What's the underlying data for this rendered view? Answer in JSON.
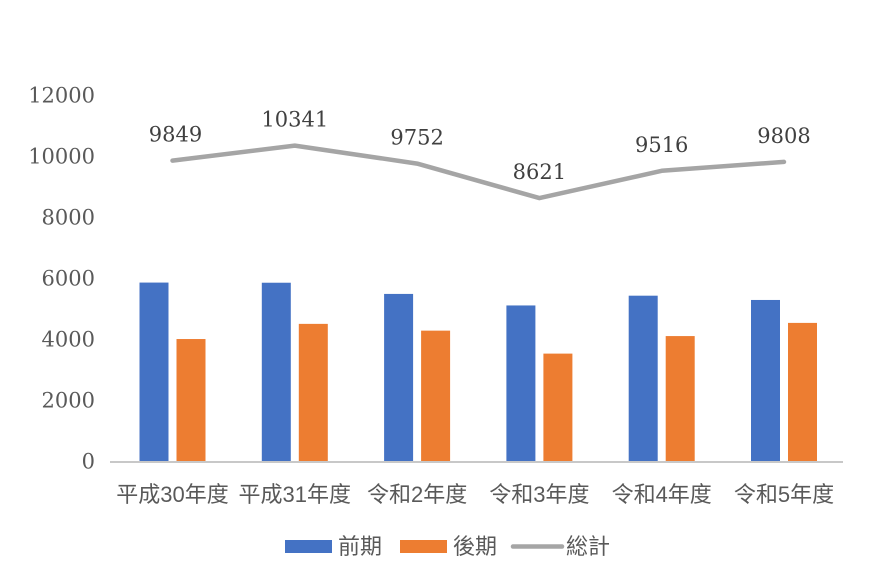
{
  "chart_data": {
    "type": "bar",
    "subtype": "combo-bar-line",
    "title": "",
    "categories": [
      "平成30年度",
      "平成31年度",
      "令和2年度",
      "令和3年度",
      "令和4年度",
      "令和5年度"
    ],
    "series": [
      {
        "name": "前期",
        "kind": "bar",
        "color": "#4472C4",
        "values": [
          5850,
          5845,
          5478,
          5100,
          5420,
          5280
        ]
      },
      {
        "name": "後期",
        "kind": "bar",
        "color": "#ED7D31",
        "values": [
          3999,
          4496,
          4274,
          3521,
          4096,
          4528
        ]
      },
      {
        "name": "総計",
        "kind": "line",
        "color": "#A5A5A5",
        "values": [
          9849,
          10341,
          9752,
          8621,
          9516,
          9808
        ],
        "data_labels": [
          "9849",
          "10341",
          "9752",
          "8621",
          "9516",
          "9808"
        ]
      }
    ],
    "y_axis": {
      "min": 0,
      "max": 12000,
      "tick_step": 2000,
      "ticks": [
        "0",
        "2000",
        "4000",
        "6000",
        "8000",
        "10000",
        "12000"
      ]
    },
    "x_axis_label": "",
    "y_axis_label": "",
    "grid": false,
    "legend_position": "bottom",
    "colors": {
      "tick_text": "#595959",
      "category_text": "#595959",
      "data_label_text": "#404040",
      "legend_text": "#595959",
      "axis_line": "#C8C8C8",
      "background": "#FFFFFF"
    }
  }
}
